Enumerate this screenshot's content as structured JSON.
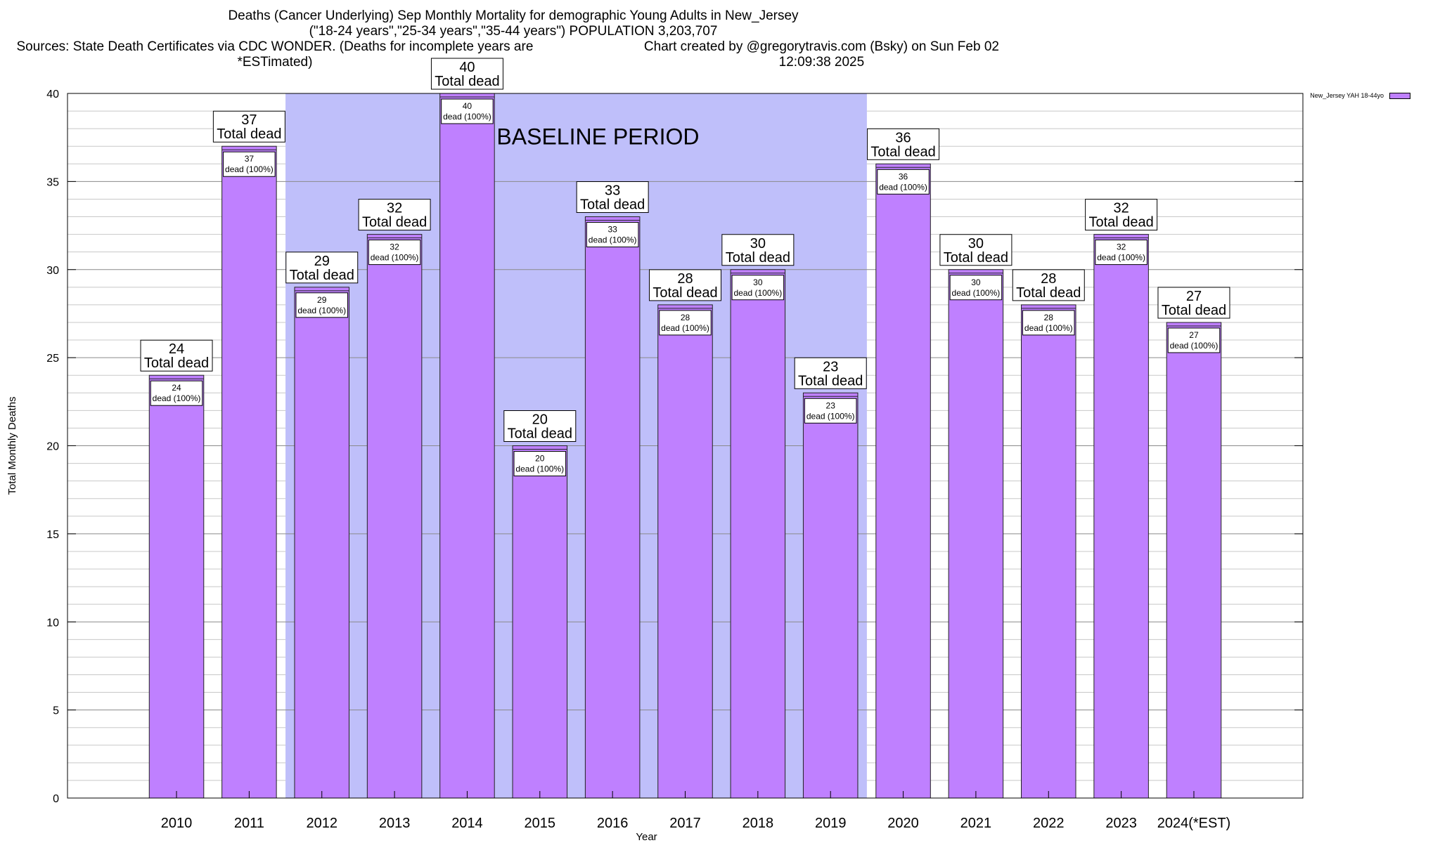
{
  "title": {
    "line1": "Deaths (Cancer Underlying) Sep Monthly Mortality for demographic Young Adults in New_Jersey",
    "line2": "(\"18-24 years\",\"25-34 years\",\"35-44 years\") POPULATION 3,203,707",
    "line3_left": "Sources: State Death Certificates via CDC WONDER. (Deaths for incomplete years are *ESTimated)",
    "line3_right": "Chart created by @gregorytravis.com (Bsky) on Sun Feb 02 12:09:38 2025"
  },
  "legend": {
    "label": "New_Jersey YAH 18-44yo"
  },
  "colors": {
    "bar": "#bf80ff",
    "baseline": "#bfbffa",
    "grid": "#c8c8c8",
    "axis": "#000000"
  },
  "chart_data": {
    "type": "bar",
    "xlabel": "Year",
    "ylabel": "Total Monthly Deaths",
    "ylim": [
      0,
      40
    ],
    "yticks": [
      0,
      5,
      10,
      15,
      20,
      25,
      30,
      35,
      40
    ],
    "grid": true,
    "legend_position": "top-right",
    "categories": [
      "2010",
      "2011",
      "2012",
      "2013",
      "2014",
      "2015",
      "2016",
      "2017",
      "2018",
      "2019",
      "2020",
      "2021",
      "2022",
      "2023",
      "2024(*EST)"
    ],
    "series": [
      {
        "name": "New_Jersey YAH 18-44yo",
        "values": [
          24,
          37,
          29,
          32,
          40,
          20,
          33,
          28,
          30,
          23,
          36,
          30,
          28,
          32,
          27
        ]
      }
    ],
    "total_label": "Total dead",
    "inner_label": "dead (100%)",
    "baseline": {
      "label": "BASELINE PERIOD",
      "from": "2012",
      "to": "2019"
    }
  }
}
